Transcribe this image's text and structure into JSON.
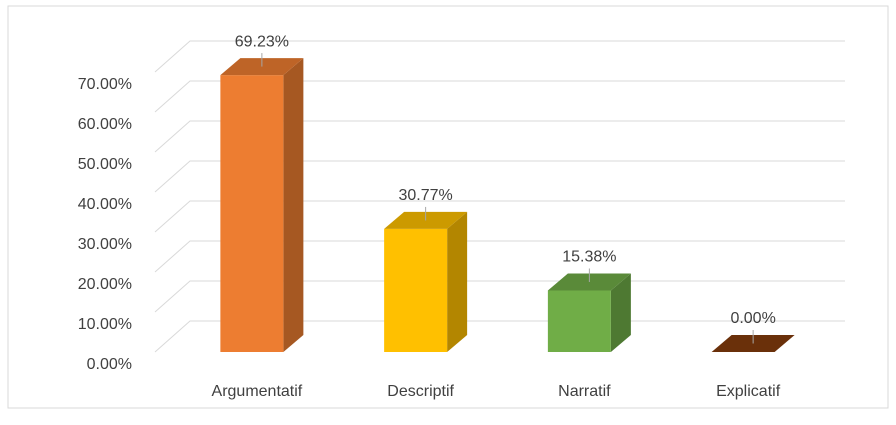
{
  "chart_data": {
    "type": "bar3d",
    "categories": [
      "Argumentatif",
      "Descriptif",
      "Narratif",
      "Explicatif"
    ],
    "values": [
      69.23,
      30.77,
      15.38,
      0
    ],
    "value_labels": [
      "69.23%",
      "30.77%",
      "15.38%",
      "0.00%"
    ],
    "colors": [
      "#ed7d31",
      "#ffc000",
      "#70ad47",
      "#843c0c"
    ],
    "ylim": [
      0,
      70
    ],
    "yticks": [
      {
        "value": 0,
        "label": "0.00%"
      },
      {
        "value": 10,
        "label": "10.00%"
      },
      {
        "value": 20,
        "label": "20.00%"
      },
      {
        "value": 30,
        "label": "30.00%"
      },
      {
        "value": 40,
        "label": "40.00%"
      },
      {
        "value": 50,
        "label": "50.00%"
      },
      {
        "value": 60,
        "label": "60.00%"
      },
      {
        "value": 70,
        "label": "70.00%"
      }
    ],
    "grid": true
  }
}
